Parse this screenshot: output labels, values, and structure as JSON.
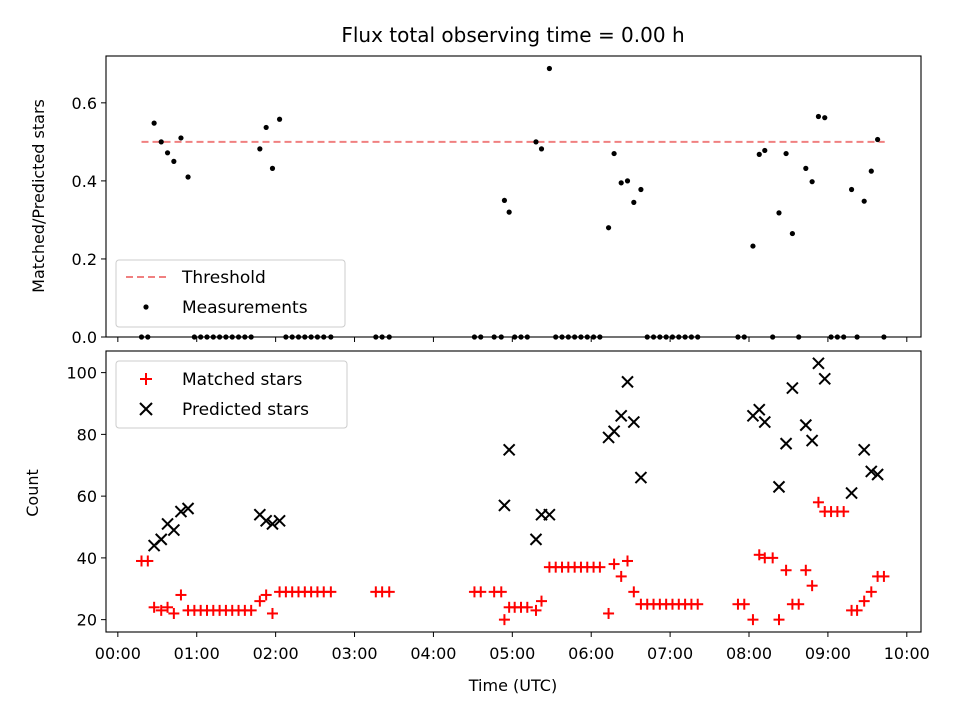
{
  "chart_data": [
    {
      "type": "scatter",
      "title": "Flux total observing time = 0.00 h",
      "ylabel": "Matched/Predicted stars",
      "xlim": [
        -0.15,
        10.18
      ],
      "ylim": [
        0,
        0.72
      ],
      "yticks": [
        {
          "value": 0.0,
          "label": "0.0"
        },
        {
          "value": 0.2,
          "label": "0.2"
        },
        {
          "value": 0.4,
          "label": "0.4"
        },
        {
          "value": 0.6,
          "label": "0.6"
        }
      ],
      "legend": {
        "position": "lower-left",
        "entries": [
          "Threshold",
          "Measurements"
        ]
      },
      "threshold": {
        "name": "Threshold",
        "value": 0.5,
        "x_range": [
          0.3,
          9.72
        ],
        "color": "#f08080"
      },
      "series": [
        {
          "name": "Measurements",
          "color": "#000000",
          "points": [
            [
              0.3,
              0
            ],
            [
              0.38,
              0
            ],
            [
              0.46,
              0.548
            ],
            [
              0.55,
              0.5
            ],
            [
              0.63,
              0.472
            ],
            [
              0.71,
              0.45
            ],
            [
              0.8,
              0.51
            ],
            [
              0.89,
              0.41
            ],
            [
              0.97,
              0
            ],
            [
              1.05,
              0
            ],
            [
              1.13,
              0
            ],
            [
              1.21,
              0
            ],
            [
              1.29,
              0
            ],
            [
              1.37,
              0
            ],
            [
              1.45,
              0
            ],
            [
              1.53,
              0
            ],
            [
              1.61,
              0
            ],
            [
              1.69,
              0
            ],
            [
              1.8,
              0.482
            ],
            [
              1.88,
              0.537
            ],
            [
              1.96,
              0.432
            ],
            [
              2.05,
              0.558
            ],
            [
              2.13,
              0
            ],
            [
              2.21,
              0
            ],
            [
              2.29,
              0
            ],
            [
              2.37,
              0
            ],
            [
              2.45,
              0
            ],
            [
              2.53,
              0
            ],
            [
              2.61,
              0
            ],
            [
              2.7,
              0
            ],
            [
              3.27,
              0
            ],
            [
              3.35,
              0
            ],
            [
              3.44,
              0
            ],
            [
              4.52,
              0
            ],
            [
              4.6,
              0
            ],
            [
              4.77,
              0
            ],
            [
              4.86,
              0
            ],
            [
              4.9,
              0.35
            ],
            [
              4.96,
              0.32
            ],
            [
              5.03,
              0
            ],
            [
              5.11,
              0
            ],
            [
              5.19,
              0
            ],
            [
              5.3,
              0.5
            ],
            [
              5.37,
              0.482
            ],
            [
              5.47,
              0.688
            ],
            [
              5.55,
              0
            ],
            [
              5.63,
              0
            ],
            [
              5.71,
              0
            ],
            [
              5.79,
              0
            ],
            [
              5.87,
              0
            ],
            [
              5.95,
              0
            ],
            [
              6.03,
              0
            ],
            [
              6.11,
              0
            ],
            [
              6.22,
              0.28
            ],
            [
              6.29,
              0.47
            ],
            [
              6.38,
              0.395
            ],
            [
              6.46,
              0.4
            ],
            [
              6.54,
              0.345
            ],
            [
              6.63,
              0.378
            ],
            [
              6.71,
              0
            ],
            [
              6.79,
              0
            ],
            [
              6.87,
              0
            ],
            [
              6.95,
              0
            ],
            [
              7.03,
              0
            ],
            [
              7.11,
              0
            ],
            [
              7.19,
              0
            ],
            [
              7.27,
              0
            ],
            [
              7.35,
              0
            ],
            [
              7.86,
              0
            ],
            [
              7.94,
              0
            ],
            [
              8.05,
              0.233
            ],
            [
              8.13,
              0.468
            ],
            [
              8.2,
              0.478
            ],
            [
              8.3,
              0
            ],
            [
              8.38,
              0.318
            ],
            [
              8.47,
              0.47
            ],
            [
              8.55,
              0.265
            ],
            [
              8.63,
              0
            ],
            [
              8.72,
              0.432
            ],
            [
              8.8,
              0.398
            ],
            [
              8.88,
              0.565
            ],
            [
              8.96,
              0.562
            ],
            [
              9.04,
              0
            ],
            [
              9.12,
              0
            ],
            [
              9.2,
              0
            ],
            [
              9.3,
              0.378
            ],
            [
              9.37,
              0
            ],
            [
              9.46,
              0.348
            ],
            [
              9.55,
              0.425
            ],
            [
              9.63,
              0.506
            ],
            [
              9.71,
              0
            ]
          ]
        }
      ]
    },
    {
      "type": "scatter",
      "xlabel": "Time (UTC)",
      "ylabel": "Count",
      "xlim": [
        -0.15,
        10.18
      ],
      "ylim": [
        16,
        107
      ],
      "xticks": [
        {
          "value": 0,
          "label": "00:00"
        },
        {
          "value": 1,
          "label": "01:00"
        },
        {
          "value": 2,
          "label": "02:00"
        },
        {
          "value": 3,
          "label": "03:00"
        },
        {
          "value": 4,
          "label": "04:00"
        },
        {
          "value": 5,
          "label": "05:00"
        },
        {
          "value": 6,
          "label": "06:00"
        },
        {
          "value": 7,
          "label": "07:00"
        },
        {
          "value": 8,
          "label": "08:00"
        },
        {
          "value": 9,
          "label": "09:00"
        },
        {
          "value": 10,
          "label": "10:00"
        }
      ],
      "yticks": [
        {
          "value": 20,
          "label": "20"
        },
        {
          "value": 40,
          "label": "40"
        },
        {
          "value": 60,
          "label": "60"
        },
        {
          "value": 80,
          "label": "80"
        },
        {
          "value": 100,
          "label": "100"
        }
      ],
      "legend": {
        "position": "top-left",
        "entries": [
          "Matched stars",
          "Predicted stars"
        ]
      },
      "series": [
        {
          "name": "Matched stars",
          "marker": "plus",
          "color": "#ff0000",
          "points": [
            [
              0.3,
              39
            ],
            [
              0.38,
              39
            ],
            [
              0.46,
              24
            ],
            [
              0.55,
              23
            ],
            [
              0.63,
              24
            ],
            [
              0.71,
              22
            ],
            [
              0.8,
              28
            ],
            [
              0.89,
              23
            ],
            [
              0.97,
              23
            ],
            [
              1.05,
              23
            ],
            [
              1.13,
              23
            ],
            [
              1.21,
              23
            ],
            [
              1.29,
              23
            ],
            [
              1.37,
              23
            ],
            [
              1.45,
              23
            ],
            [
              1.53,
              23
            ],
            [
              1.61,
              23
            ],
            [
              1.69,
              23
            ],
            [
              1.8,
              26
            ],
            [
              1.88,
              28
            ],
            [
              1.96,
              22
            ],
            [
              2.05,
              29
            ],
            [
              2.13,
              29
            ],
            [
              2.21,
              29
            ],
            [
              2.29,
              29
            ],
            [
              2.37,
              29
            ],
            [
              2.45,
              29
            ],
            [
              2.53,
              29
            ],
            [
              2.61,
              29
            ],
            [
              2.7,
              29
            ],
            [
              3.27,
              29
            ],
            [
              3.35,
              29
            ],
            [
              3.44,
              29
            ],
            [
              4.52,
              29
            ],
            [
              4.6,
              29
            ],
            [
              4.77,
              29
            ],
            [
              4.86,
              29
            ],
            [
              4.9,
              20
            ],
            [
              4.96,
              24
            ],
            [
              5.03,
              24
            ],
            [
              5.11,
              24
            ],
            [
              5.19,
              24
            ],
            [
              5.3,
              23
            ],
            [
              5.37,
              26
            ],
            [
              5.47,
              37
            ],
            [
              5.55,
              37
            ],
            [
              5.63,
              37
            ],
            [
              5.71,
              37
            ],
            [
              5.79,
              37
            ],
            [
              5.87,
              37
            ],
            [
              5.95,
              37
            ],
            [
              6.03,
              37
            ],
            [
              6.11,
              37
            ],
            [
              6.22,
              22
            ],
            [
              6.29,
              38
            ],
            [
              6.38,
              34
            ],
            [
              6.46,
              39
            ],
            [
              6.54,
              29
            ],
            [
              6.63,
              25
            ],
            [
              6.71,
              25
            ],
            [
              6.79,
              25
            ],
            [
              6.87,
              25
            ],
            [
              6.95,
              25
            ],
            [
              7.03,
              25
            ],
            [
              7.11,
              25
            ],
            [
              7.19,
              25
            ],
            [
              7.27,
              25
            ],
            [
              7.35,
              25
            ],
            [
              7.86,
              25
            ],
            [
              7.94,
              25
            ],
            [
              8.05,
              20
            ],
            [
              8.13,
              41
            ],
            [
              8.2,
              40
            ],
            [
              8.3,
              40
            ],
            [
              8.38,
              20
            ],
            [
              8.47,
              36
            ],
            [
              8.55,
              25
            ],
            [
              8.63,
              25
            ],
            [
              8.72,
              36
            ],
            [
              8.8,
              31
            ],
            [
              8.88,
              58
            ],
            [
              8.96,
              55
            ],
            [
              9.04,
              55
            ],
            [
              9.12,
              55
            ],
            [
              9.2,
              55
            ],
            [
              9.3,
              23
            ],
            [
              9.37,
              23
            ],
            [
              9.46,
              26
            ],
            [
              9.55,
              29
            ],
            [
              9.63,
              34
            ],
            [
              9.71,
              34
            ]
          ]
        },
        {
          "name": "Predicted stars",
          "marker": "x",
          "color": "#000000",
          "points": [
            [
              0.46,
              44
            ],
            [
              0.55,
              46
            ],
            [
              0.63,
              51
            ],
            [
              0.71,
              49
            ],
            [
              0.8,
              55
            ],
            [
              0.89,
              56
            ],
            [
              1.8,
              54
            ],
            [
              1.88,
              52
            ],
            [
              1.96,
              51
            ],
            [
              2.05,
              52
            ],
            [
              4.9,
              57
            ],
            [
              4.96,
              75
            ],
            [
              5.3,
              46
            ],
            [
              5.37,
              54
            ],
            [
              5.47,
              54
            ],
            [
              6.22,
              79
            ],
            [
              6.29,
              81
            ],
            [
              6.38,
              86
            ],
            [
              6.46,
              97
            ],
            [
              6.54,
              84
            ],
            [
              6.63,
              66
            ],
            [
              8.05,
              86
            ],
            [
              8.13,
              88
            ],
            [
              8.2,
              84
            ],
            [
              8.38,
              63
            ],
            [
              8.47,
              77
            ],
            [
              8.55,
              95
            ],
            [
              8.72,
              83
            ],
            [
              8.8,
              78
            ],
            [
              8.88,
              103
            ],
            [
              8.96,
              98
            ],
            [
              9.3,
              61
            ],
            [
              9.46,
              75
            ],
            [
              9.55,
              68
            ],
            [
              9.63,
              67
            ]
          ]
        }
      ]
    }
  ]
}
